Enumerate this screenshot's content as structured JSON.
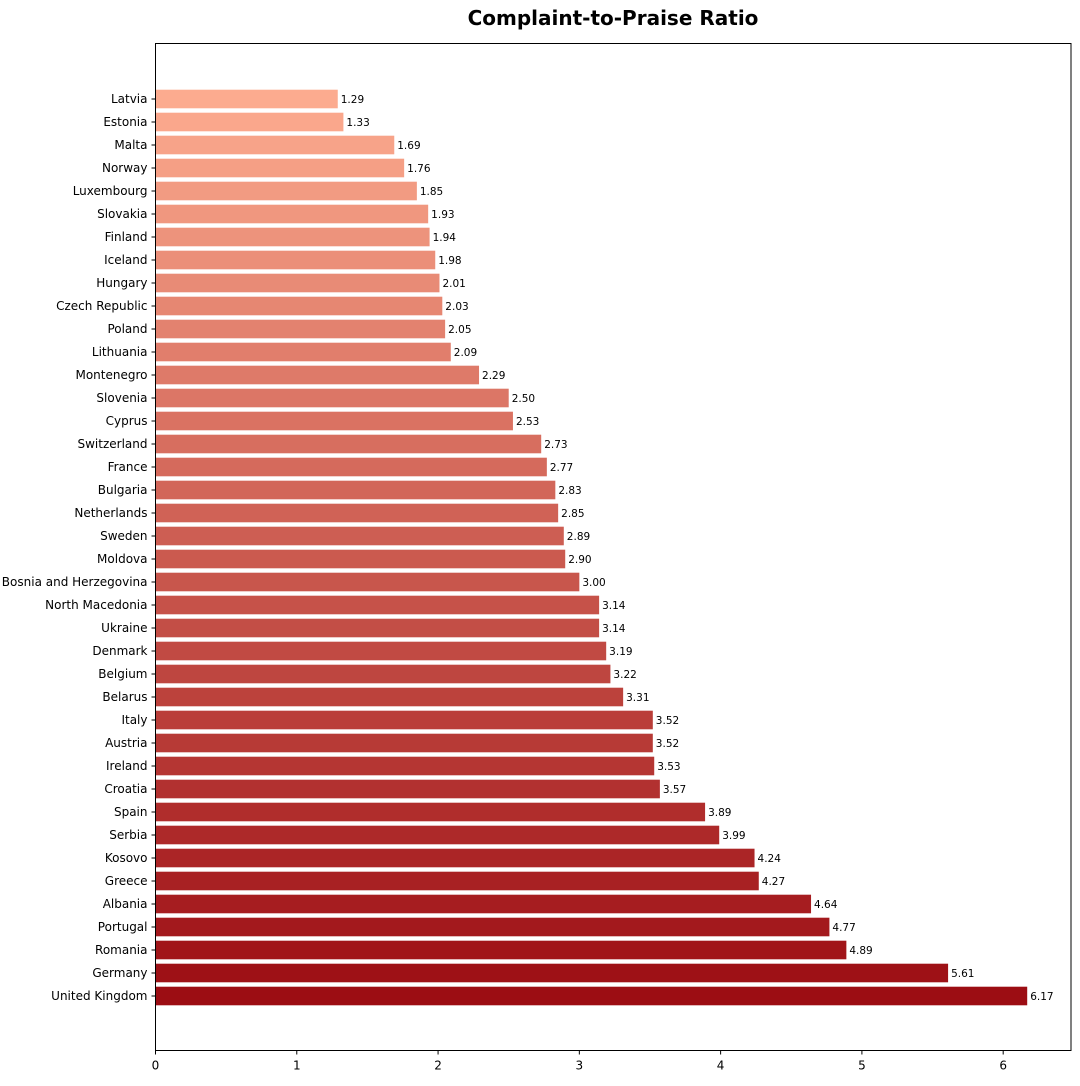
{
  "chart_data": {
    "type": "bar",
    "orientation": "horizontal",
    "title": "Complaint-to-Praise Ratio",
    "xlabel": "",
    "ylabel": "",
    "xlim": [
      0,
      6.48
    ],
    "xticks": [
      0,
      1,
      2,
      3,
      4,
      5,
      6
    ],
    "grid": false,
    "legend": "none",
    "color_scale": {
      "light": "#fcab8f",
      "dark": "#9c0d13"
    },
    "categories": [
      "Latvia",
      "Estonia",
      "Malta",
      "Norway",
      "Luxembourg",
      "Slovakia",
      "Finland",
      "Iceland",
      "Hungary",
      "Czech Republic",
      "Poland",
      "Lithuania",
      "Montenegro",
      "Slovenia",
      "Cyprus",
      "Switzerland",
      "France",
      "Bulgaria",
      "Netherlands",
      "Sweden",
      "Moldova",
      "Bosnia and Herzegovina",
      "North Macedonia",
      "Ukraine",
      "Denmark",
      "Belgium",
      "Belarus",
      "Italy",
      "Austria",
      "Ireland",
      "Croatia",
      "Spain",
      "Serbia",
      "Kosovo",
      "Greece",
      "Albania",
      "Portugal",
      "Romania",
      "Germany",
      "United Kingdom"
    ],
    "values": [
      1.29,
      1.33,
      1.69,
      1.76,
      1.85,
      1.93,
      1.94,
      1.98,
      2.01,
      2.03,
      2.05,
      2.09,
      2.29,
      2.5,
      2.53,
      2.73,
      2.77,
      2.83,
      2.85,
      2.89,
      2.9,
      3.0,
      3.14,
      3.14,
      3.19,
      3.22,
      3.31,
      3.52,
      3.52,
      3.53,
      3.57,
      3.89,
      3.99,
      4.24,
      4.27,
      4.64,
      4.77,
      4.89,
      5.61,
      6.17
    ],
    "value_labels": [
      "1.29",
      "1.33",
      "1.69",
      "1.76",
      "1.85",
      "1.93",
      "1.94",
      "1.98",
      "2.01",
      "2.03",
      "2.05",
      "2.09",
      "2.29",
      "2.50",
      "2.53",
      "2.73",
      "2.77",
      "2.83",
      "2.85",
      "2.89",
      "2.90",
      "3.00",
      "3.14",
      "3.14",
      "3.19",
      "3.22",
      "3.31",
      "3.52",
      "3.52",
      "3.53",
      "3.57",
      "3.89",
      "3.99",
      "4.24",
      "4.27",
      "4.64",
      "4.77",
      "4.89",
      "5.61",
      "6.17"
    ]
  }
}
